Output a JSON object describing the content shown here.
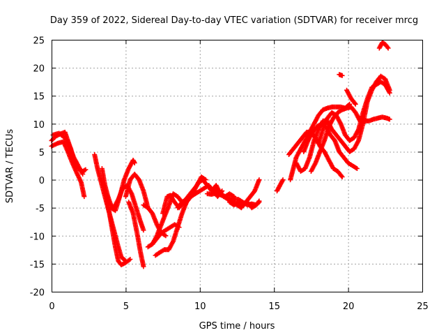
{
  "chart_data": {
    "type": "scatter",
    "title": "Day 359 of 2022, Sidereal Day-to-day VTEC variation (SDTVAR) for receiver mrcg",
    "xlabel": "GPS time / hours",
    "ylabel": "SDTVAR / TECUs",
    "xlim": [
      0,
      25
    ],
    "ylim": [
      -20,
      25
    ],
    "xticks": [
      0,
      5,
      10,
      15,
      20,
      25
    ],
    "yticks": [
      -20,
      -15,
      -10,
      -5,
      0,
      5,
      10,
      15,
      20,
      25
    ],
    "grid": true,
    "marker": "+",
    "color": "#ff0000",
    "series": [
      {
        "points": [
          [
            0,
            7
          ],
          [
            0.3,
            7.8
          ],
          [
            0.6,
            8.2
          ],
          [
            0.9,
            8.5
          ],
          [
            1.1,
            7
          ],
          [
            1.3,
            5.5
          ],
          [
            1.5,
            3.5
          ],
          [
            1.8,
            2
          ],
          [
            2.1,
            1.5
          ],
          [
            2.3,
            1.8
          ]
        ]
      },
      {
        "points": [
          [
            0,
            6
          ],
          [
            0.4,
            6.5
          ],
          [
            0.8,
            6.8
          ],
          [
            1.1,
            5
          ],
          [
            1.4,
            3
          ],
          [
            1.7,
            1.2
          ],
          [
            2.0,
            -0.5
          ],
          [
            2.2,
            -3
          ]
        ]
      },
      {
        "points": [
          [
            0.1,
            8
          ],
          [
            0.5,
            8.3
          ],
          [
            0.9,
            7.5
          ],
          [
            1.2,
            6
          ],
          [
            1.5,
            4
          ],
          [
            1.8,
            2.5
          ],
          [
            2.1,
            1
          ]
        ]
      },
      {
        "points": [
          [
            2.9,
            4.5
          ],
          [
            3.1,
            2
          ],
          [
            3.3,
            0
          ],
          [
            3.5,
            -2
          ],
          [
            3.7,
            -4
          ],
          [
            3.9,
            -6
          ],
          [
            4.1,
            -8
          ],
          [
            4.3,
            -10
          ],
          [
            4.5,
            -12
          ],
          [
            4.7,
            -13.8
          ],
          [
            5.0,
            -14.5
          ]
        ]
      },
      {
        "points": [
          [
            3.4,
            2
          ],
          [
            3.6,
            -1
          ],
          [
            3.8,
            -3
          ],
          [
            4.0,
            -4.5
          ],
          [
            4.2,
            -5
          ],
          [
            4.5,
            -3.5
          ],
          [
            4.8,
            -1.5
          ],
          [
            5.1,
            -1
          ],
          [
            5.4,
            -2.5
          ],
          [
            5.7,
            -5
          ],
          [
            6.0,
            -7.5
          ],
          [
            6.2,
            -9
          ]
        ]
      },
      {
        "points": [
          [
            3.7,
            -3
          ],
          [
            3.9,
            -6
          ],
          [
            4.1,
            -9
          ],
          [
            4.3,
            -12
          ],
          [
            4.5,
            -14.5
          ],
          [
            4.7,
            -15.2
          ],
          [
            5.0,
            -14.8
          ],
          [
            5.3,
            -14.2
          ]
        ]
      },
      {
        "points": [
          [
            4.0,
            -5
          ],
          [
            4.3,
            -5.5
          ],
          [
            4.6,
            -3
          ],
          [
            4.9,
            0
          ],
          [
            5.2,
            2
          ],
          [
            5.5,
            3.5
          ],
          [
            5.6,
            3
          ]
        ]
      },
      {
        "points": [
          [
            5.2,
            -4
          ],
          [
            5.5,
            -6
          ],
          [
            5.8,
            -10
          ],
          [
            6.0,
            -13
          ],
          [
            6.2,
            -15.5
          ]
        ]
      },
      {
        "points": [
          [
            5.0,
            -3
          ],
          [
            5.3,
            0
          ],
          [
            5.6,
            1
          ],
          [
            5.9,
            0
          ],
          [
            6.2,
            -2
          ],
          [
            6.5,
            -5
          ]
        ]
      },
      {
        "points": [
          [
            6.2,
            -4.5
          ],
          [
            6.5,
            -5
          ],
          [
            6.8,
            -6
          ],
          [
            7.1,
            -8
          ],
          [
            7.4,
            -9.5
          ],
          [
            7.7,
            -10
          ]
        ]
      },
      {
        "points": [
          [
            6.5,
            -12
          ],
          [
            6.8,
            -11.5
          ],
          [
            7.1,
            -10.5
          ],
          [
            7.4,
            -9.5
          ],
          [
            7.7,
            -9
          ],
          [
            8.0,
            -8.5
          ],
          [
            8.3,
            -8
          ],
          [
            8.6,
            -8.5
          ]
        ]
      },
      {
        "points": [
          [
            6.8,
            -11.5
          ],
          [
            7.1,
            -10
          ],
          [
            7.4,
            -8
          ],
          [
            7.7,
            -6
          ],
          [
            8.0,
            -4
          ],
          [
            8.2,
            -2.5
          ],
          [
            8.5,
            -3
          ],
          [
            8.8,
            -4
          ]
        ]
      },
      {
        "points": [
          [
            7.0,
            -13.5
          ],
          [
            7.3,
            -13
          ],
          [
            7.6,
            -12.5
          ],
          [
            7.9,
            -12.5
          ],
          [
            8.2,
            -11
          ],
          [
            8.5,
            -8.5
          ],
          [
            8.8,
            -6
          ],
          [
            9.1,
            -4
          ],
          [
            9.4,
            -3
          ],
          [
            9.7,
            -2
          ]
        ]
      },
      {
        "points": [
          [
            7.5,
            -6
          ],
          [
            7.8,
            -3
          ],
          [
            8.0,
            -2.8
          ],
          [
            8.3,
            -4
          ],
          [
            8.6,
            -5
          ],
          [
            8.9,
            -4
          ],
          [
            9.2,
            -3
          ],
          [
            9.5,
            -2
          ],
          [
            9.8,
            -1
          ],
          [
            10.1,
            0.5
          ],
          [
            10.4,
            0
          ]
        ]
      },
      {
        "points": [
          [
            8.5,
            -5
          ],
          [
            8.8,
            -4
          ],
          [
            9.1,
            -3.5
          ],
          [
            9.4,
            -3
          ],
          [
            9.7,
            -2.5
          ],
          [
            10.0,
            -2
          ],
          [
            10.3,
            -1.5
          ],
          [
            10.6,
            -1
          ],
          [
            10.9,
            -2
          ],
          [
            11.2,
            -3
          ],
          [
            11.5,
            -2
          ]
        ]
      },
      {
        "points": [
          [
            9.0,
            -4.5
          ],
          [
            9.3,
            -3
          ],
          [
            9.6,
            -2
          ],
          [
            9.9,
            -0.5
          ],
          [
            10.2,
            0
          ],
          [
            10.5,
            -1
          ],
          [
            10.8,
            -2
          ],
          [
            11.1,
            -1
          ],
          [
            11.4,
            -2.5
          ],
          [
            11.7,
            -3
          ],
          [
            12.0,
            -2.5
          ],
          [
            12.3,
            -3
          ]
        ]
      },
      {
        "points": [
          [
            10.5,
            -2.5
          ],
          [
            10.8,
            -2.6
          ],
          [
            11.1,
            -2.4
          ],
          [
            11.4,
            -2.7
          ],
          [
            11.7,
            -3
          ],
          [
            12.0,
            -3.3
          ],
          [
            12.3,
            -3.5
          ],
          [
            12.6,
            -3.5
          ],
          [
            12.9,
            -4
          ],
          [
            13.2,
            -4.5
          ],
          [
            13.5,
            -4.3
          ],
          [
            13.8,
            -4.5
          ],
          [
            14.0,
            -4
          ]
        ]
      },
      {
        "points": [
          [
            11.0,
            -1.5
          ],
          [
            11.3,
            -2.5
          ],
          [
            11.6,
            -3
          ],
          [
            11.9,
            -3.5
          ],
          [
            12.2,
            -4
          ],
          [
            12.5,
            -4.5
          ],
          [
            12.8,
            -5
          ],
          [
            13.1,
            -4
          ],
          [
            13.4,
            -3
          ],
          [
            13.7,
            -2
          ],
          [
            14.0,
            0
          ]
        ]
      },
      {
        "points": [
          [
            12.0,
            -4
          ],
          [
            12.3,
            -4.5
          ],
          [
            12.6,
            -4
          ],
          [
            12.9,
            -4.5
          ],
          [
            13.2,
            -4
          ],
          [
            13.5,
            -5
          ],
          [
            13.8,
            -4.5
          ],
          [
            14.0,
            -3.8
          ]
        ]
      },
      {
        "points": [
          [
            15.2,
            -2
          ],
          [
            15.4,
            -1
          ],
          [
            15.6,
            0
          ]
        ]
      },
      {
        "points": [
          [
            16.1,
            0
          ],
          [
            16.3,
            2
          ],
          [
            16.5,
            4
          ],
          [
            16.8,
            5.5
          ],
          [
            17.1,
            7
          ],
          [
            17.4,
            8.5
          ],
          [
            17.7,
            10
          ],
          [
            18.0,
            11.5
          ],
          [
            18.3,
            12.5
          ],
          [
            18.6,
            12.8
          ],
          [
            18.9,
            13
          ],
          [
            19.2,
            13
          ],
          [
            19.5,
            13
          ],
          [
            19.8,
            12.8
          ],
          [
            20.1,
            13.5
          ]
        ]
      },
      {
        "points": [
          [
            16.0,
            4.5
          ],
          [
            16.3,
            5.5
          ],
          [
            16.6,
            6.5
          ],
          [
            16.9,
            7.5
          ],
          [
            17.2,
            8.5
          ],
          [
            17.5,
            8.5
          ],
          [
            17.8,
            7.5
          ],
          [
            18.1,
            6
          ],
          [
            18.4,
            5
          ],
          [
            18.7,
            3.5
          ],
          [
            19.0,
            2
          ],
          [
            19.3,
            1.5
          ],
          [
            19.6,
            0.5
          ]
        ]
      },
      {
        "points": [
          [
            16.5,
            3
          ],
          [
            16.8,
            1.5
          ],
          [
            17.1,
            2
          ],
          [
            17.4,
            4
          ],
          [
            17.7,
            7
          ],
          [
            18.0,
            9
          ],
          [
            18.3,
            10.5
          ],
          [
            18.6,
            10.5
          ],
          [
            18.9,
            9
          ],
          [
            19.2,
            8
          ],
          [
            19.5,
            7
          ],
          [
            19.8,
            6
          ],
          [
            20.1,
            5
          ],
          [
            20.4,
            5.5
          ],
          [
            20.7,
            7
          ],
          [
            21.0,
            10
          ],
          [
            21.3,
            14
          ],
          [
            21.6,
            16
          ],
          [
            21.9,
            17.5
          ],
          [
            22.2,
            18.5
          ],
          [
            22.5,
            18
          ],
          [
            22.8,
            16
          ]
        ]
      },
      {
        "points": [
          [
            17.0,
            5
          ],
          [
            17.3,
            7
          ],
          [
            17.6,
            8.5
          ],
          [
            17.9,
            9.5
          ],
          [
            18.2,
            10
          ],
          [
            18.5,
            9.5
          ],
          [
            18.8,
            8
          ],
          [
            19.1,
            7
          ],
          [
            19.4,
            5
          ],
          [
            19.7,
            4
          ],
          [
            20.0,
            3
          ],
          [
            20.3,
            2.5
          ],
          [
            20.6,
            2
          ]
        ]
      },
      {
        "points": [
          [
            17.5,
            1.5
          ],
          [
            17.8,
            3
          ],
          [
            18.1,
            5
          ],
          [
            18.4,
            7
          ],
          [
            18.7,
            9.5
          ],
          [
            19.0,
            11
          ],
          [
            19.3,
            12
          ],
          [
            19.6,
            12.5
          ],
          [
            19.9,
            12.8
          ],
          [
            20.2,
            13
          ],
          [
            20.5,
            12
          ],
          [
            20.8,
            10.5
          ],
          [
            21.1,
            10.5
          ],
          [
            21.4,
            10.5
          ],
          [
            21.7,
            10.8
          ],
          [
            22.0,
            11
          ],
          [
            22.3,
            11.2
          ],
          [
            22.6,
            11
          ],
          [
            22.8,
            10.8
          ]
        ]
      },
      {
        "points": [
          [
            18.0,
            6.5
          ],
          [
            18.3,
            9
          ],
          [
            18.6,
            11
          ],
          [
            18.9,
            12
          ],
          [
            19.2,
            11.5
          ],
          [
            19.5,
            10
          ],
          [
            19.8,
            8
          ],
          [
            20.1,
            7
          ],
          [
            20.4,
            7.5
          ],
          [
            20.7,
            9
          ],
          [
            21.0,
            12
          ],
          [
            21.3,
            14.5
          ],
          [
            21.6,
            16.5
          ],
          [
            21.9,
            17
          ],
          [
            22.2,
            17.5
          ],
          [
            22.5,
            17
          ],
          [
            22.8,
            15.5
          ]
        ]
      },
      {
        "points": [
          [
            19.4,
            18.8
          ],
          [
            19.6,
            18.6
          ]
        ]
      },
      {
        "points": [
          [
            19.9,
            16
          ],
          [
            20.2,
            14.5
          ],
          [
            20.5,
            13.5
          ]
        ]
      },
      {
        "points": [
          [
            22.1,
            23.5
          ],
          [
            22.3,
            24.5
          ],
          [
            22.5,
            24.2
          ],
          [
            22.7,
            23.5
          ]
        ]
      }
    ]
  }
}
